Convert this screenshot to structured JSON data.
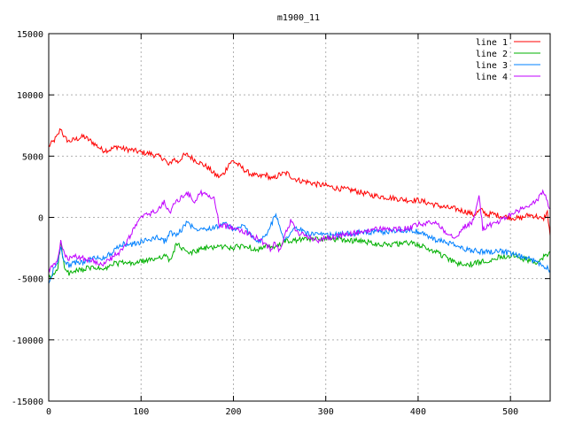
{
  "chart_data": {
    "type": "line",
    "title": "m1900_11",
    "xlabel": "",
    "ylabel": "",
    "xlim": [
      0,
      543
    ],
    "ylim": [
      -15000,
      15000
    ],
    "x_ticks": [
      0,
      100,
      200,
      300,
      400,
      500
    ],
    "y_ticks": [
      -15000,
      -10000,
      -5000,
      0,
      5000,
      10000,
      15000
    ],
    "grid": true,
    "legend_position": "top-right",
    "series": [
      {
        "name": "line 1",
        "color": "#ff0000",
        "x": [
          0,
          5,
          10,
          13,
          17,
          22,
          30,
          38,
          48,
          58,
          65,
          75,
          80,
          90,
          100,
          110,
          118,
          125,
          130,
          135,
          140,
          145,
          150,
          158,
          165,
          172,
          180,
          185,
          190,
          195,
          200,
          205,
          210,
          215,
          220,
          228,
          235,
          242,
          250,
          258,
          265,
          272,
          280,
          290,
          300,
          310,
          320,
          330,
          340,
          350,
          360,
          370,
          380,
          390,
          400,
          410,
          420,
          430,
          440,
          450,
          455,
          460,
          468,
          475,
          480,
          490,
          500,
          510,
          520,
          528,
          535,
          540,
          543
        ],
        "values": [
          5800,
          6200,
          6700,
          7300,
          6500,
          6200,
          6400,
          6600,
          6100,
          5500,
          5500,
          5800,
          5600,
          5500,
          5300,
          5200,
          5000,
          4800,
          4200,
          4800,
          4500,
          5000,
          5100,
          4700,
          4400,
          4100,
          3500,
          3300,
          3600,
          4400,
          4600,
          4300,
          4000,
          3700,
          3500,
          3300,
          3500,
          3100,
          3500,
          3600,
          3200,
          3000,
          2900,
          2700,
          2600,
          2400,
          2300,
          2200,
          2000,
          1800,
          1700,
          1600,
          1500,
          1400,
          1400,
          1200,
          1000,
          800,
          700,
          500,
          400,
          200,
          600,
          200,
          300,
          100,
          0,
          -100,
          200,
          100,
          -200,
          400,
          -1500
        ]
      },
      {
        "name": "line 2",
        "color": "#00b000",
        "x": [
          0,
          5,
          10,
          13,
          17,
          22,
          30,
          40,
          50,
          60,
          70,
          80,
          90,
          100,
          110,
          118,
          125,
          132,
          138,
          145,
          150,
          158,
          165,
          172,
          180,
          190,
          200,
          210,
          220,
          228,
          235,
          245,
          255,
          265,
          275,
          285,
          300,
          315,
          330,
          345,
          360,
          375,
          390,
          400,
          410,
          420,
          430,
          440,
          450,
          460,
          470,
          480,
          490,
          500,
          510,
          520,
          528,
          535,
          543
        ],
        "values": [
          -5000,
          -4700,
          -4000,
          -2000,
          -4200,
          -4600,
          -4400,
          -4200,
          -4100,
          -4300,
          -3800,
          -3700,
          -3800,
          -3600,
          -3500,
          -3300,
          -3100,
          -3600,
          -2100,
          -2600,
          -2900,
          -2800,
          -2600,
          -2500,
          -2400,
          -2400,
          -2500,
          -2300,
          -2500,
          -2600,
          -2400,
          -2500,
          -2000,
          -1900,
          -1800,
          -1800,
          -1700,
          -1800,
          -1900,
          -2000,
          -2200,
          -2200,
          -2100,
          -2200,
          -2600,
          -2800,
          -3300,
          -3700,
          -3900,
          -3800,
          -3600,
          -3400,
          -3200,
          -3100,
          -3300,
          -3500,
          -3800,
          -3300,
          -2800
        ]
      },
      {
        "name": "line 3",
        "color": "#0080ff",
        "x": [
          0,
          5,
          10,
          13,
          17,
          22,
          30,
          40,
          50,
          60,
          70,
          80,
          90,
          100,
          110,
          118,
          125,
          132,
          138,
          145,
          150,
          158,
          165,
          172,
          180,
          190,
          200,
          210,
          220,
          228,
          235,
          240,
          245,
          250,
          255,
          262,
          270,
          280,
          290,
          300,
          315,
          330,
          345,
          360,
          375,
          390,
          400,
          410,
          420,
          430,
          440,
          450,
          460,
          470,
          480,
          490,
          500,
          510,
          520,
          530,
          538,
          543
        ],
        "values": [
          -5500,
          -4300,
          -3600,
          -2200,
          -3700,
          -3900,
          -3700,
          -3600,
          -3300,
          -3300,
          -2800,
          -2200,
          -2200,
          -2000,
          -1800,
          -1600,
          -2000,
          -1200,
          -1500,
          -900,
          -300,
          -1000,
          -800,
          -900,
          -800,
          -500,
          -1000,
          -700,
          -1500,
          -2000,
          -1500,
          -800,
          200,
          -500,
          -2000,
          -1100,
          -900,
          -1300,
          -1400,
          -1500,
          -1400,
          -1300,
          -1200,
          -1200,
          -1100,
          -1000,
          -1200,
          -1500,
          -1900,
          -2000,
          -2300,
          -2600,
          -2700,
          -2800,
          -2800,
          -2700,
          -3000,
          -3200,
          -3400,
          -3700,
          -4000,
          -4300
        ]
      },
      {
        "name": "line 4",
        "color": "#c000ff",
        "x": [
          0,
          5,
          10,
          13,
          17,
          22,
          30,
          40,
          50,
          60,
          70,
          80,
          90,
          100,
          110,
          118,
          125,
          132,
          138,
          145,
          150,
          158,
          165,
          172,
          180,
          185,
          190,
          200,
          210,
          220,
          228,
          235,
          240,
          245,
          250,
          255,
          262,
          270,
          280,
          290,
          300,
          315,
          330,
          345,
          360,
          375,
          390,
          400,
          410,
          420,
          430,
          440,
          450,
          460,
          466,
          470,
          480,
          490,
          500,
          510,
          520,
          528,
          535,
          543
        ],
        "values": [
          -4300,
          -4000,
          -3500,
          -1900,
          -3100,
          -3400,
          -3200,
          -3400,
          -3600,
          -3800,
          -3200,
          -2700,
          -1200,
          0,
          300,
          600,
          1200,
          500,
          1300,
          1700,
          2000,
          1300,
          2000,
          1800,
          1400,
          -800,
          -700,
          -800,
          -1100,
          -1500,
          -1800,
          -2200,
          -2600,
          -2000,
          -2700,
          -1600,
          -300,
          -1300,
          -1500,
          -1900,
          -1700,
          -1500,
          -1300,
          -1100,
          -900,
          -1000,
          -900,
          -600,
          -500,
          -400,
          -1200,
          -1600,
          -800,
          -300,
          1800,
          -900,
          -600,
          -200,
          200,
          600,
          900,
          1300,
          2200,
          700
        ]
      }
    ]
  }
}
